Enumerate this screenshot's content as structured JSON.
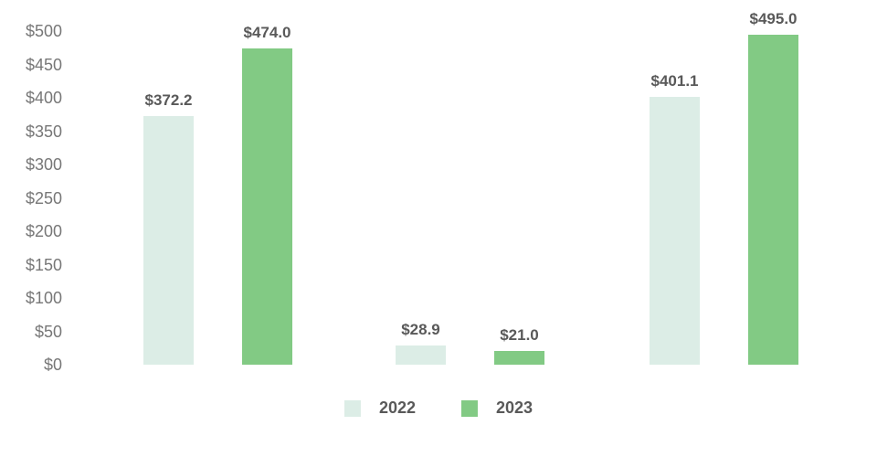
{
  "chart_data": {
    "type": "bar",
    "title": "",
    "categories": [
      "",
      "",
      ""
    ],
    "series": [
      {
        "name": "2022",
        "color": "#dcede6",
        "values": [
          372.2,
          28.9,
          401.1
        ],
        "data_labels": [
          "$372.2",
          "$28.9",
          "$401.1"
        ]
      },
      {
        "name": "2023",
        "color": "#82ca84",
        "values": [
          474.0,
          21.0,
          495.0
        ],
        "data_labels": [
          "$474.0",
          "$21.0",
          "$495.0"
        ]
      }
    ],
    "ylim": [
      0,
      500
    ],
    "yticks": [
      {
        "value": 0,
        "label": "$0"
      },
      {
        "value": 50,
        "label": "$50"
      },
      {
        "value": 100,
        "label": "$100"
      },
      {
        "value": 150,
        "label": "$150"
      },
      {
        "value": 200,
        "label": "$200"
      },
      {
        "value": 250,
        "label": "$250"
      },
      {
        "value": 300,
        "label": "$300"
      },
      {
        "value": 350,
        "label": "$350"
      },
      {
        "value": 400,
        "label": "$400"
      },
      {
        "value": 450,
        "label": "$450"
      },
      {
        "value": 500,
        "label": "$500"
      }
    ],
    "xlabel": "",
    "ylabel": "",
    "grid": false,
    "legend_position": "bottom",
    "legend_entries": [
      "2022",
      "2023"
    ]
  },
  "styles": {
    "background": "#ffffff",
    "tick_color": "#777777",
    "data_label_color": "#595959",
    "legend_label_color": "#595959",
    "series_2022_color": "#dcede6",
    "series_2023_color": "#82ca84"
  }
}
